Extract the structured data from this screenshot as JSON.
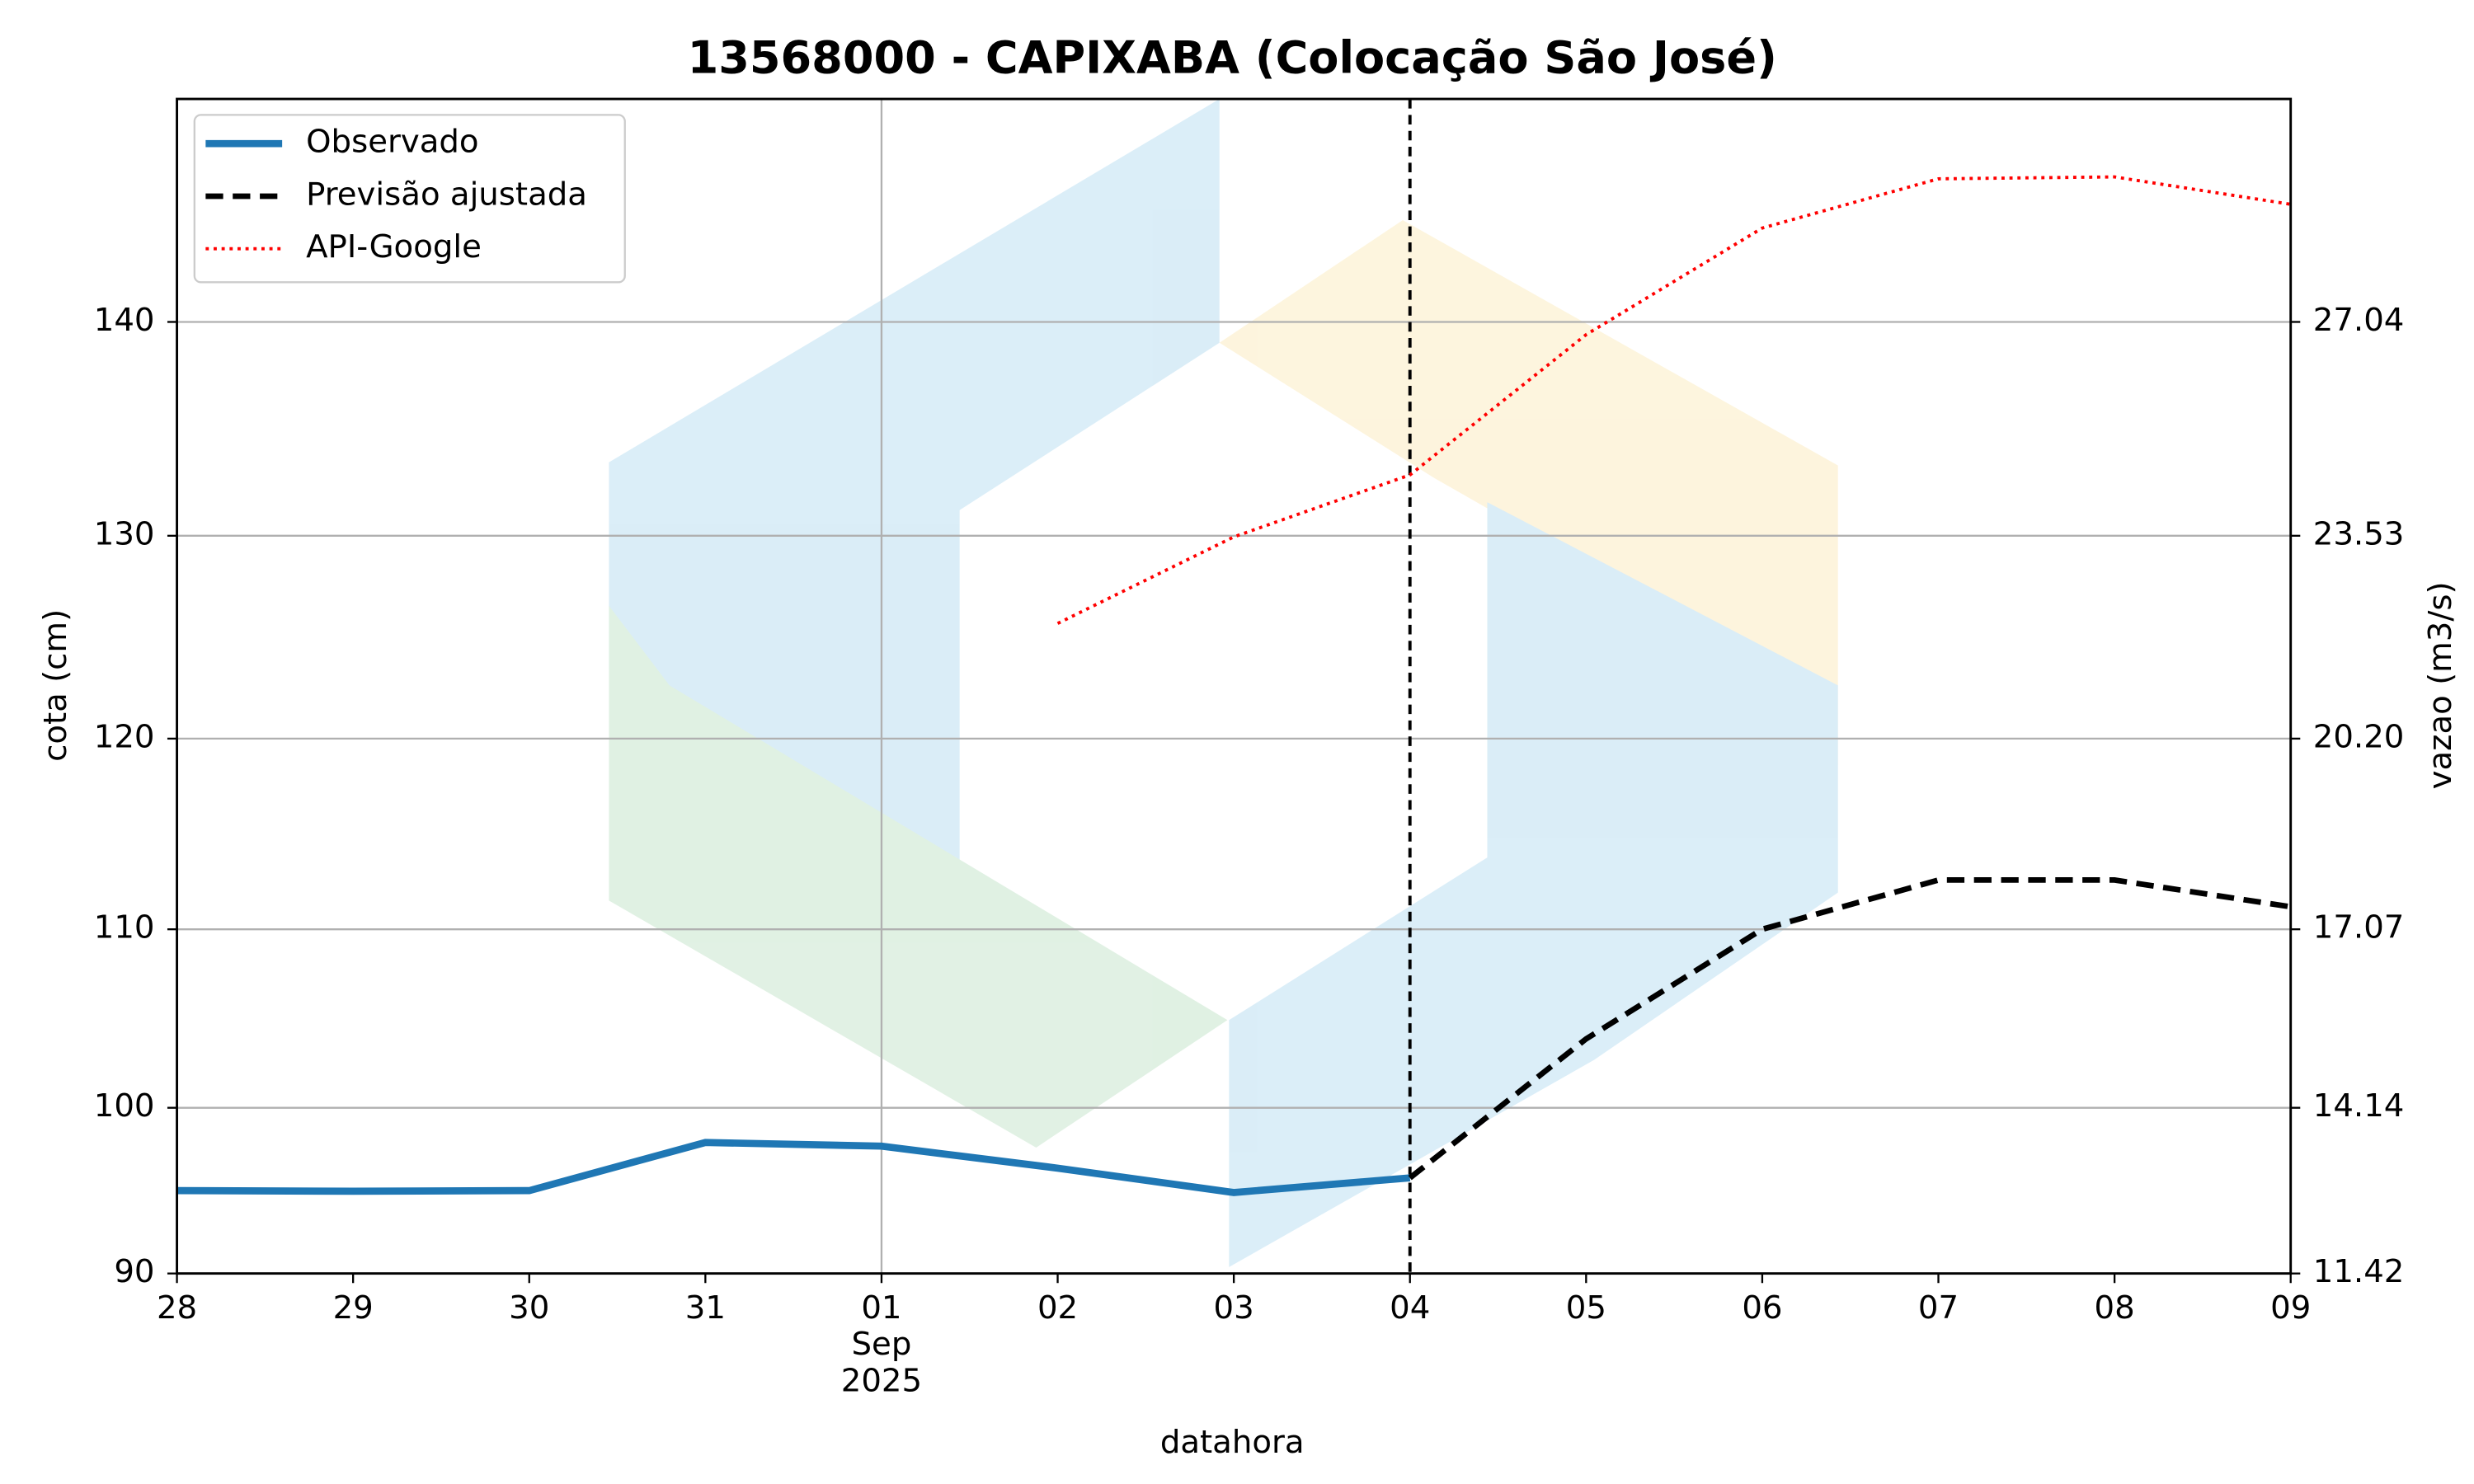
{
  "chart_data": {
    "type": "line",
    "title": "13568000 - CAPIXABA (Colocação São José)",
    "x_label": "datahora",
    "y_label": "cota (cm)",
    "y2_label": "vazao (m3/s)",
    "categories": [
      "28",
      "29",
      "30",
      "31",
      "01\nSep\n2025",
      "02",
      "03",
      "04",
      "05",
      "06",
      "07",
      "08",
      "09"
    ],
    "series": [
      {
        "name": "Observado",
        "color": "#1f77b4",
        "style": "solid",
        "axis": "y2",
        "values": [
          12.78,
          12.77,
          12.78,
          13.57,
          13.51,
          13.15,
          12.75,
          12.99,
          null,
          null,
          null,
          null,
          null
        ]
      },
      {
        "name": "Previsão ajustada",
        "color": "#000000",
        "style": "dashed",
        "axis": "y2",
        "values": [
          null,
          null,
          null,
          null,
          null,
          null,
          null,
          12.99,
          15.27,
          17.07,
          17.88,
          17.88,
          17.44
        ]
      },
      {
        "name": "API-Google",
        "color": "#ff0000",
        "style": "dotted",
        "axis": "y2",
        "values": [
          null,
          null,
          null,
          null,
          null,
          22.09,
          23.51,
          24.53,
          26.83,
          28.58,
          29.39,
          29.42,
          28.97
        ]
      }
    ],
    "yticks": [
      90,
      100,
      110,
      120,
      130,
      140
    ],
    "y2lim": [
      11.42,
      30.7
    ],
    "y2ticks": [
      11.42,
      14.14,
      17.07,
      {
        "value": 20.2,
        "label": "20.20"
      },
      23.53,
      27.04
    ],
    "grid": true,
    "legend": "upper left"
  }
}
